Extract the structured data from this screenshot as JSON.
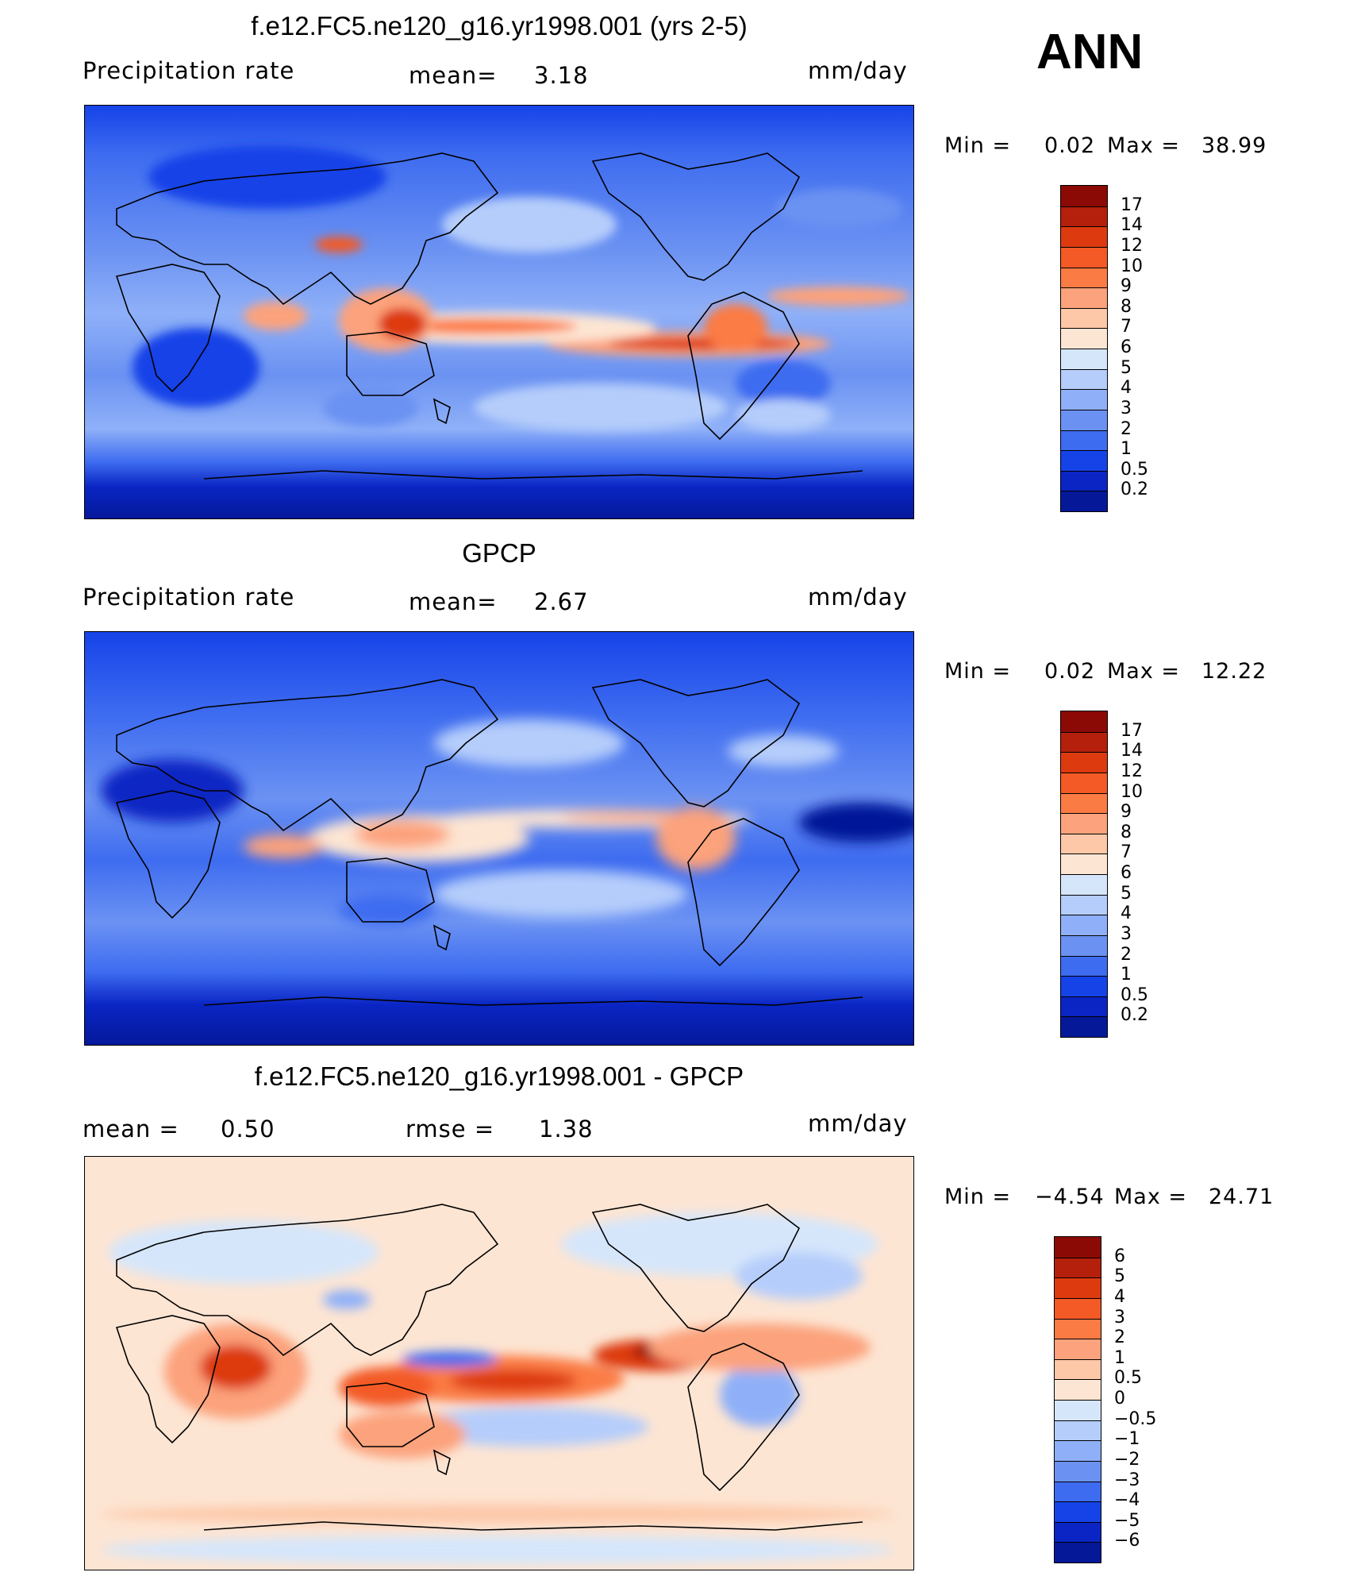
{
  "annotation": "ANN",
  "chart_data": [
    {
      "type": "heatmap",
      "title": "f.e12.FC5.ne120_g16.yr1998.001 (yrs 2-5)",
      "left_label": "Precipitation  rate",
      "center_label": "mean=",
      "center_value": "3.18",
      "units": "mm/day",
      "min_label": "Min  =",
      "min_value": "0.02",
      "max_label": "Max  =",
      "max_value": "38.99",
      "colorbar_levels": [
        "17",
        "14",
        "12",
        "10",
        "9",
        "8",
        "7",
        "6",
        "5",
        "4",
        "3",
        "2",
        "1",
        "0.5",
        "0.2"
      ],
      "colorbar_colors": [
        "#8c0a05",
        "#b5200c",
        "#dd3a10",
        "#f35a25",
        "#fb7b45",
        "#fca27c",
        "#fdc8a8",
        "#fde5d3",
        "#d5e6fb",
        "#b5cdfb",
        "#8fb0f8",
        "#6b92f2",
        "#3e6cf0",
        "#1643e8",
        "#0a25c4",
        "#041898"
      ]
    },
    {
      "type": "heatmap",
      "title": "GPCP",
      "left_label": "Precipitation  rate",
      "center_label": "mean=",
      "center_value": "2.67",
      "units": "mm/day",
      "min_label": "Min  =",
      "min_value": "0.02",
      "max_label": "Max  =",
      "max_value": "12.22",
      "colorbar_levels": [
        "17",
        "14",
        "12",
        "10",
        "9",
        "8",
        "7",
        "6",
        "5",
        "4",
        "3",
        "2",
        "1",
        "0.5",
        "0.2"
      ],
      "colorbar_colors": [
        "#8c0a05",
        "#b5200c",
        "#dd3a10",
        "#f35a25",
        "#fb7b45",
        "#fca27c",
        "#fdc8a8",
        "#fde5d3",
        "#d5e6fb",
        "#b5cdfb",
        "#8fb0f8",
        "#6b92f2",
        "#3e6cf0",
        "#1643e8",
        "#0a25c4",
        "#041898"
      ]
    },
    {
      "type": "heatmap",
      "title": "f.e12.FC5.ne120_g16.yr1998.001 - GPCP",
      "left_label": "mean  =",
      "left_value": "0.50",
      "center_label": "rmse  =",
      "center_value": "1.38",
      "units": "mm/day",
      "min_label": "Min  =",
      "min_value": "−4.54",
      "max_label": "Max  =",
      "max_value": "24.71",
      "colorbar_levels": [
        "6",
        "5",
        "4",
        "3",
        "2",
        "1",
        "0.5",
        "0",
        "−0.5",
        "−1",
        "−2",
        "−3",
        "−4",
        "−5",
        "−6"
      ],
      "colorbar_colors": [
        "#8c0a05",
        "#b5200c",
        "#dd3a10",
        "#f35a25",
        "#fb7b45",
        "#fca27c",
        "#fdc8a8",
        "#fde5d3",
        "#d5e6fb",
        "#b5cdfb",
        "#8fb0f8",
        "#6b92f2",
        "#3e6cf0",
        "#1643e8",
        "#0a25c4",
        "#041898"
      ]
    }
  ]
}
